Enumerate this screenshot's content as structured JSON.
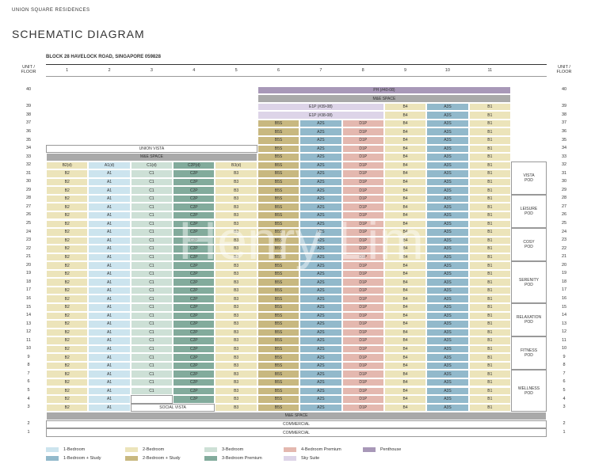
{
  "header": {
    "brand": "UNION SQUARE RESIDENCES",
    "title": "SCHEMATIC DIAGRAM",
    "block": "BLOCK 28 HAVELOCK ROAD, SINGAPORE 059828",
    "unit_floor_left": "UNIT / FLOOR",
    "unit_floor_right": "UNIT / FLOOR"
  },
  "columns": [
    {
      "label": "1",
      "color": "#ece4ba"
    },
    {
      "label": "2",
      "color": "#cce4ee"
    },
    {
      "label": "3",
      "color": "#cde0d6"
    },
    {
      "label": "4",
      "color": "#82ab9c"
    },
    {
      "label": "5",
      "color": "#ece4ba"
    },
    {
      "label": "6",
      "color": "#c8b880"
    },
    {
      "label": "7",
      "color": "#92b9cb"
    },
    {
      "label": "8",
      "color": "#e4b8af"
    },
    {
      "label": "9",
      "color": "#ece4ba"
    },
    {
      "label": "10",
      "color": "#92b9cb"
    },
    {
      "label": "11",
      "color": "#ece4ba"
    }
  ],
  "rows": [
    {
      "floor": "40",
      "cells": [
        null,
        null,
        null,
        null,
        null,
        {
          "text": "PH (#40-08)",
          "span": 6,
          "color": "#a898b8"
        }
      ]
    },
    {
      "floor": null,
      "cells": [
        null,
        null,
        null,
        null,
        null,
        {
          "text": "M&E SPACE",
          "span": 6,
          "color": "#a9a9a9"
        }
      ]
    },
    {
      "floor": "39",
      "cells": [
        null,
        null,
        null,
        null,
        null,
        {
          "text": "E1P (#39-08)",
          "span": 3,
          "color": "#ddd4e8"
        },
        "B4",
        "A3S",
        "B1"
      ]
    },
    {
      "floor": "38",
      "cells": [
        null,
        null,
        null,
        null,
        null,
        {
          "text": "E1P (#38-08)",
          "span": 3,
          "color": "#ddd4e8"
        },
        "B4",
        "A3S",
        "B1"
      ]
    },
    {
      "floor": "37",
      "cells": [
        null,
        null,
        null,
        null,
        null,
        "B5S",
        "A2S",
        "D1P",
        "B4",
        "A3S",
        "B1"
      ]
    },
    {
      "floor": "36",
      "cells": [
        null,
        null,
        null,
        null,
        null,
        "B5S",
        "A2S",
        "D1P",
        "B4",
        "A3S",
        "B1"
      ]
    },
    {
      "floor": "35",
      "cells": [
        null,
        null,
        null,
        null,
        null,
        "B5S",
        "A2S",
        "D1P",
        "B4",
        "A3S",
        "B1"
      ]
    },
    {
      "floor": "34",
      "cells": [
        {
          "text": "UNION VISTA",
          "span": 5,
          "color": "#ffffff"
        },
        "B5S",
        "A2S",
        "D1P",
        "B4",
        "A3S",
        "B1"
      ]
    },
    {
      "floor": "33",
      "cells": [
        {
          "text": "M&E SPACE",
          "span": 5,
          "color": "#a9a9a9"
        },
        "B5S",
        "A2S",
        "D1P",
        "B4",
        "A3S",
        "B1"
      ]
    },
    {
      "floor": "32",
      "cells": [
        "B2(d)",
        "A1(d)",
        "C1(d)",
        "C2P(d)",
        "B3(d)",
        "B5S",
        "A2S",
        "D1P",
        "B4",
        "A3S",
        "B1"
      ]
    },
    {
      "floor": "31",
      "cells": [
        "B2",
        "A1",
        "C1",
        "C2P",
        "B3",
        "B5S",
        "A2S",
        "D1P",
        "B4",
        "A3S",
        "B1"
      ]
    },
    {
      "floor": "30",
      "cells": [
        "B2",
        "A1",
        "C1",
        "C2P",
        "B3",
        "B5S",
        "A2S",
        "D1P",
        "B4",
        "A3S",
        "B1"
      ]
    },
    {
      "floor": "29",
      "cells": [
        "B2",
        "A1",
        "C1",
        "C2P",
        "B3",
        "B5S",
        "A2S",
        "D1P",
        "B4",
        "A3S",
        "B1"
      ]
    },
    {
      "floor": "28",
      "cells": [
        "B2",
        "A1",
        "C1",
        "C2P",
        "B3",
        "B5S",
        "A2S",
        "D1P",
        "B4",
        "A3S",
        "B1"
      ]
    },
    {
      "floor": "27",
      "cells": [
        "B2",
        "A1",
        "C1",
        "C2P",
        "B3",
        "B5S",
        "A2S",
        "D1P",
        "B4",
        "A3S",
        "B1"
      ]
    },
    {
      "floor": "26",
      "cells": [
        "B2",
        "A1",
        "C1",
        "C2P",
        "B3",
        "B5S",
        "A2S",
        "D1P",
        "B4",
        "A3S",
        "B1"
      ]
    },
    {
      "floor": "25",
      "cells": [
        "B2",
        "A1",
        "C1",
        "C2P",
        "B3",
        "B5S",
        "A2S",
        "D1P",
        "B4",
        "A3S",
        "B1"
      ]
    },
    {
      "floor": "24",
      "cells": [
        "B2",
        "A1",
        "C1",
        "C2P",
        "B3",
        "B5S",
        "A2S",
        "D1P",
        "B4",
        "A3S",
        "B1"
      ]
    },
    {
      "floor": "23",
      "cells": [
        "B2",
        "A1",
        "C1",
        "C2P",
        "B3",
        "B5S",
        "A2S",
        "D1P",
        "B4",
        "A3S",
        "B1"
      ]
    },
    {
      "floor": "22",
      "cells": [
        "B2",
        "A1",
        "C1",
        "C2P",
        "B3",
        "B5S",
        "A2S",
        "D1P",
        "B4",
        "A3S",
        "B1"
      ]
    },
    {
      "floor": "21",
      "cells": [
        "B2",
        "A1",
        "C1",
        "C2P",
        "B3",
        "B5S",
        "A2S",
        "D1P",
        "B4",
        "A3S",
        "B1"
      ]
    },
    {
      "floor": "20",
      "cells": [
        "B2",
        "A1",
        "C1",
        "C2P",
        "B3",
        "B5S",
        "A2S",
        "D1P",
        "B4",
        "A3S",
        "B1"
      ]
    },
    {
      "floor": "19",
      "cells": [
        "B2",
        "A1",
        "C1",
        "C2P",
        "B3",
        "B5S",
        "A2S",
        "D1P",
        "B4",
        "A3S",
        "B1"
      ]
    },
    {
      "floor": "18",
      "cells": [
        "B2",
        "A1",
        "C1",
        "C2P",
        "B3",
        "B5S",
        "A2S",
        "D1P",
        "B4",
        "A3S",
        "B1"
      ]
    },
    {
      "floor": "17",
      "cells": [
        "B2",
        "A1",
        "C1",
        "C2P",
        "B3",
        "B5S",
        "A2S",
        "D1P",
        "B4",
        "A3S",
        "B1"
      ]
    },
    {
      "floor": "16",
      "cells": [
        "B2",
        "A1",
        "C1",
        "C2P",
        "B3",
        "B5S",
        "A2S",
        "D1P",
        "B4",
        "A3S",
        "B1"
      ]
    },
    {
      "floor": "15",
      "cells": [
        "B2",
        "A1",
        "C1",
        "C2P",
        "B3",
        "B5S",
        "A2S",
        "D1P",
        "B4",
        "A3S",
        "B1"
      ]
    },
    {
      "floor": "14",
      "cells": [
        "B2",
        "A1",
        "C1",
        "C2P",
        "B3",
        "B5S",
        "A2S",
        "D1P",
        "B4",
        "A3S",
        "B1"
      ]
    },
    {
      "floor": "13",
      "cells": [
        "B2",
        "A1",
        "C1",
        "C2P",
        "B3",
        "B5S",
        "A2S",
        "D1P",
        "B4",
        "A3S",
        "B1"
      ]
    },
    {
      "floor": "12",
      "cells": [
        "B2",
        "A1",
        "C1",
        "C2P",
        "B3",
        "B5S",
        "A2S",
        "D1P",
        "B4",
        "A3S",
        "B1"
      ]
    },
    {
      "floor": "11",
      "cells": [
        "B2",
        "A1",
        "C1",
        "C2P",
        "B3",
        "B5S",
        "A2S",
        "D1P",
        "B4",
        "A3S",
        "B1"
      ]
    },
    {
      "floor": "10",
      "cells": [
        "B2",
        "A1",
        "C1",
        "C2P",
        "B3",
        "B5S",
        "A2S",
        "D1P",
        "B4",
        "A3S",
        "B1"
      ]
    },
    {
      "floor": "9",
      "cells": [
        "B2",
        "A1",
        "C1",
        "C2P",
        "B3",
        "B5S",
        "A2S",
        "D1P",
        "B4",
        "A3S",
        "B1"
      ]
    },
    {
      "floor": "8",
      "cells": [
        "B2",
        "A1",
        "C1",
        "C2P",
        "B3",
        "B5S",
        "A2S",
        "D1P",
        "B4",
        "A3S",
        "B1"
      ]
    },
    {
      "floor": "7",
      "cells": [
        "B2",
        "A1",
        "C1",
        "C2P",
        "B3",
        "B5S",
        "A2S",
        "D1P",
        "B4",
        "A3S",
        "B1"
      ]
    },
    {
      "floor": "6",
      "cells": [
        "B2",
        "A1",
        "C1",
        "C2P",
        "B3",
        "B5S",
        "A2S",
        "D1P",
        "B4",
        "A3S",
        "B1"
      ]
    },
    {
      "floor": "5",
      "cells": [
        "B2",
        "A1",
        "C1",
        "C2P",
        "B3",
        "B5S",
        "A2S",
        "D1P",
        "B4",
        "A3S",
        "B1"
      ]
    },
    {
      "floor": "4",
      "cells": [
        "B2",
        "A1",
        {
          "span": 1,
          "color": "#ffffff"
        },
        "C2P",
        "B3",
        "B5S",
        "A2S",
        "D1P",
        "B4",
        "A3S",
        "B1"
      ]
    },
    {
      "floor": "3",
      "cells": [
        "B2",
        "A1",
        {
          "text": "SOCIAL VISTA",
          "span": 2,
          "color": "#ffffff"
        },
        "B3",
        "B5S",
        "A2S",
        "D1P",
        "B4",
        "A3S",
        "B1"
      ]
    },
    {
      "floor": null,
      "cells": [
        {
          "text": "M&E SPACE",
          "span": 12,
          "color": "#a9a9a9"
        }
      ]
    },
    {
      "floor": "2",
      "cells": [
        {
          "text": "COMMERCIAL",
          "span": 12,
          "color": "#ffffff"
        }
      ]
    },
    {
      "floor": "1",
      "cells": [
        {
          "text": "COMMERCIAL",
          "span": 12,
          "color": "#ffffff"
        }
      ]
    }
  ],
  "pods": [
    {
      "lines": [
        "VISTA",
        "POD"
      ],
      "floors": [
        "32",
        "29"
      ]
    },
    {
      "lines": [
        "LEISURE",
        "POD"
      ],
      "floors": [
        "28",
        "25"
      ]
    },
    {
      "lines": [
        "COSY",
        "POD"
      ],
      "floors": [
        "24",
        "21"
      ]
    },
    {
      "lines": [
        "SERENITY",
        "POD"
      ],
      "floors": [
        "20",
        "16"
      ]
    },
    {
      "lines": [
        "RELAXATION",
        "POD"
      ],
      "floors": [
        "15",
        "12"
      ]
    },
    {
      "lines": [
        "FITNESS",
        "POD"
      ],
      "floors": [
        "11",
        "8"
      ]
    },
    {
      "lines": [
        "WELLNESS",
        "POD"
      ],
      "floors": [
        "7",
        "3"
      ]
    }
  ],
  "legend": [
    {
      "label": "1-Bedroom",
      "color": "#cce4ee"
    },
    {
      "label": "1-Bedroom + Study",
      "color": "#92b9cb"
    },
    {
      "label": "2-Bedroom",
      "color": "#ece4ba"
    },
    {
      "label": "2-Bedroom + Study",
      "color": "#c8b880"
    },
    {
      "label": "3-Bedroom",
      "color": "#cde0d6"
    },
    {
      "label": "3-Bedroom Premium",
      "color": "#82ab9c"
    },
    {
      "label": "4-Bedroom Premium",
      "color": "#e4b8af"
    },
    {
      "label": "Sky Suite",
      "color": "#ddd4e8"
    },
    {
      "label": "Penthouse",
      "color": "#a898b8"
    }
  ],
  "watermark": "Henry Lim"
}
